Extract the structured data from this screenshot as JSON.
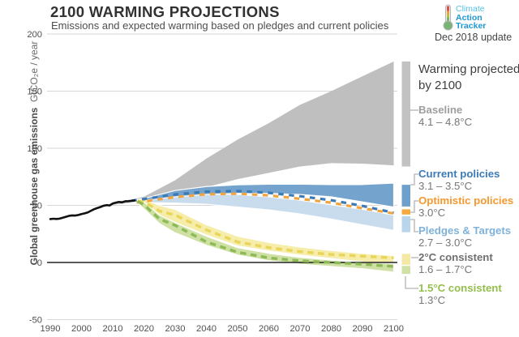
{
  "header": {
    "title": "2100 WARMING PROJECTIONS",
    "subtitle": "Emissions and expected warming based on pledges and current policies"
  },
  "logo": {
    "line1": "Climate",
    "line2": "Action",
    "line3": "Tracker",
    "update": "Dec 2018 update",
    "brand_blue": "#1f98d0",
    "brand_light_blue": "#56c2e5"
  },
  "annotation": {
    "text": "Warming projected by 2100"
  },
  "legend": {
    "items": [
      {
        "id": "baseline",
        "label": "Baseline",
        "value": "4.1 – 4.8°C",
        "color": "#9e9e9e"
      },
      {
        "id": "current-policies",
        "label": "Current policies",
        "value": "3.1 – 3.5°C",
        "color": "#3d7ab8"
      },
      {
        "id": "optimistic-policies",
        "label": "Optimistic policies",
        "value": "3.0°C",
        "color": "#f5982f"
      },
      {
        "id": "pledges-targets",
        "label": "Pledges & Targets",
        "value": "2.7 – 3.0°C",
        "color": "#7fb2d9"
      },
      {
        "id": "2c-consistent",
        "label": "2°C consistent",
        "value": "1.6 – 1.7°C",
        "color": "#6f6f6f"
      },
      {
        "id": "1-5c-consistent",
        "label": "1.5°C consistent",
        "value": "1.3°C",
        "color": "#94bf4e"
      }
    ]
  },
  "chart_data": {
    "type": "area",
    "title": "2100 WARMING PROJECTIONS",
    "y_label_bold": "Global greenhouse gas emissions",
    "y_label_unit": "GtCO₂e / year",
    "xlim": [
      1990,
      2100
    ],
    "ylim": [
      -50,
      200
    ],
    "y_ticks": [
      200,
      150,
      100,
      50,
      0,
      -50
    ],
    "x_ticks": [
      1990,
      2000,
      2010,
      2020,
      2030,
      2040,
      2050,
      2060,
      2070,
      2080,
      2090,
      2100
    ],
    "grid": true,
    "historical": {
      "name": "historical-emissions",
      "color": "#111111",
      "x": [
        1990,
        1991,
        1992,
        1993,
        1994,
        1995,
        1996,
        1997,
        1998,
        1999,
        2000,
        2001,
        2002,
        2003,
        2004,
        2005,
        2006,
        2007,
        2008,
        2009,
        2010,
        2011,
        2012,
        2013,
        2014,
        2015,
        2016,
        2017
      ],
      "y": [
        38,
        38.3,
        38.1,
        38.4,
        39.2,
        40,
        40.8,
        41.2,
        41.1,
        41.6,
        42.4,
        43,
        43.8,
        45.2,
        46.6,
        47.6,
        48.5,
        49.6,
        50.2,
        49.9,
        51.6,
        52.4,
        53,
        52.6,
        53.6,
        53.7,
        54,
        54.3
      ]
    },
    "bands": [
      {
        "id": "baseline",
        "name": "Baseline",
        "warming": "4.1 – 4.8°C",
        "color": "#bfbfbf",
        "outline": false,
        "x": [
          2010,
          2013,
          2016,
          2020,
          2030,
          2040,
          2050,
          2060,
          2070,
          2080,
          2090,
          2100
        ],
        "lo": [
          50.5,
          51.5,
          52.5,
          54,
          60,
          66,
          73,
          78.5,
          84,
          87,
          86.5,
          85
        ],
        "hi": [
          52.5,
          54,
          55,
          57.5,
          72,
          91,
          107.5,
          122,
          138,
          150,
          163,
          176
        ]
      },
      {
        "id": "pledges",
        "name": "Pledges & Targets",
        "warming": "2.7 – 3.0°C",
        "color": "#c8dcee",
        "outline": true,
        "x": [
          2016,
          2020,
          2030,
          2040,
          2050,
          2060,
          2070,
          2080,
          2090,
          2100
        ],
        "lo": [
          53,
          52.5,
          52,
          51,
          48.5,
          46,
          42.5,
          38,
          33,
          28
        ],
        "hi": [
          54,
          54.5,
          58.5,
          60,
          59.5,
          57.5,
          54.5,
          50.5,
          46.5,
          41.5
        ]
      },
      {
        "id": "current",
        "name": "Current policies",
        "warming": "3.1 – 3.5°C",
        "color": "#74a3cd",
        "outline": true,
        "x": [
          2016,
          2020,
          2030,
          2040,
          2050,
          2060,
          2070,
          2080,
          2090,
          2100
        ],
        "lo": [
          53.5,
          54.5,
          57.5,
          59.5,
          60.5,
          60.5,
          59.5,
          57.5,
          53,
          48.5
        ],
        "hi": [
          54.5,
          56,
          63,
          66.5,
          68,
          68.5,
          68.5,
          68.2,
          68.2,
          69.5
        ]
      },
      {
        "id": "two-deg",
        "name": "2°C consistent",
        "warming": "1.6 – 1.7°C",
        "color": "#f6edaa",
        "outline": true,
        "x": [
          2018,
          2020,
          2025,
          2030,
          2040,
          2050,
          2060,
          2070,
          2080,
          2090,
          2100
        ],
        "lo": [
          52.5,
          50,
          41,
          35,
          24,
          14.5,
          10,
          6.5,
          3.5,
          0.5,
          -2
        ],
        "hi": [
          55,
          55.5,
          50,
          46.5,
          33,
          23,
          17.5,
          13.5,
          10.5,
          8,
          6
        ]
      },
      {
        "id": "one-five",
        "name": "1.5°C consistent",
        "warming": "1.3°C",
        "color": "#cfe0a4",
        "outline": true,
        "x": [
          2018,
          2020,
          2025,
          2030,
          2040,
          2050,
          2060,
          2070,
          2080,
          2090,
          2100
        ],
        "lo": [
          52,
          47,
          34,
          26,
          15,
          6.5,
          1.5,
          -1.5,
          -3.5,
          -5.5,
          -8.5
        ],
        "hi": [
          54,
          53,
          41.5,
          35,
          23,
          13,
          8,
          4.5,
          2,
          0,
          -1
        ]
      }
    ],
    "lines": [
      {
        "id": "current-median",
        "name": "Current policies (median)",
        "color": "#3c7ab6",
        "x": [
          2016,
          2020,
          2030,
          2040,
          2050,
          2060,
          2070,
          2080,
          2090,
          2100
        ],
        "y": [
          54,
          55.5,
          59.5,
          62,
          62.5,
          61,
          58,
          54.5,
          49.5,
          43.5
        ]
      },
      {
        "id": "optimistic",
        "name": "Optimistic policies",
        "color": "#f2a33c",
        "x": [
          2016,
          2020,
          2030,
          2040,
          2050,
          2060,
          2070,
          2080,
          2090,
          2100
        ],
        "y": [
          53.5,
          55,
          58.8,
          61.3,
          61.8,
          60.3,
          57.3,
          53.9,
          49,
          44.5
        ]
      },
      {
        "id": "two-deg-line",
        "name": "2°C consistent (median)",
        "color": "#e8d55a",
        "x": [
          2018,
          2020,
          2025,
          2030,
          2040,
          2050,
          2060,
          2070,
          2080,
          2090,
          2100
        ],
        "y": [
          54,
          53,
          45,
          41.5,
          28.5,
          18,
          13,
          9.5,
          7,
          5.5,
          4
        ]
      },
      {
        "id": "one-five-line",
        "name": "1.5°C consistent (median)",
        "color": "#8cba55",
        "x": [
          2018,
          2020,
          2025,
          2030,
          2040,
          2050,
          2060,
          2070,
          2080,
          2090,
          2100
        ],
        "y": [
          53.5,
          50.5,
          38,
          32.5,
          18,
          9,
          4,
          1.5,
          0,
          -1.5,
          -3.5
        ]
      }
    ],
    "range_bars_2100": [
      {
        "id": "baseline",
        "lo": 84,
        "hi": 176,
        "color": "#c2c2c2"
      },
      {
        "id": "current",
        "lo": 49,
        "hi": 68,
        "color": "#6fa0cc"
      },
      {
        "id": "optimistic",
        "lo": 42,
        "hi": 46.5,
        "color": "#f5a93f"
      },
      {
        "id": "pledges",
        "lo": 26.5,
        "hi": 40.5,
        "color": "#b9d5eb"
      },
      {
        "id": "two-deg",
        "lo": -2,
        "hi": 7.5,
        "color": "#f3e9a4"
      },
      {
        "id": "one-five",
        "lo": -10,
        "hi": -3,
        "color": "#cfe1a6"
      }
    ]
  }
}
